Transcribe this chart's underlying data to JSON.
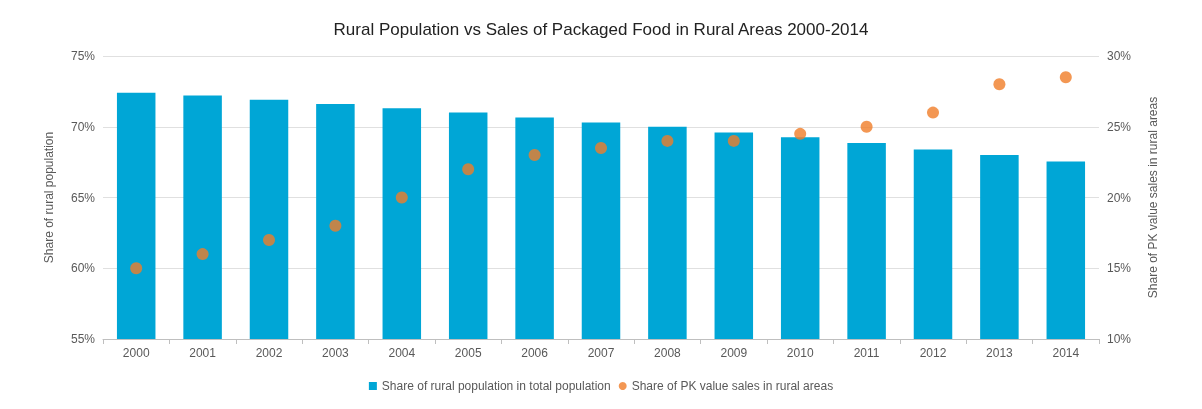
{
  "chart_data": {
    "type": "bar",
    "title": "Rural Population vs Sales of Packaged Food in Rural Areas 2000-2014",
    "ylabel": "Share of rural population",
    "y2label": "Share of PK value sales in rural areas",
    "categories": [
      "2000",
      "2001",
      "2002",
      "2003",
      "2004",
      "2005",
      "2006",
      "2007",
      "2008",
      "2009",
      "2010",
      "2011",
      "2012",
      "2013",
      "2014"
    ],
    "series": [
      {
        "name": "Share of rural population in total population",
        "color": "#00a6d6",
        "values": [
          72.4,
          72.2,
          71.9,
          71.6,
          71.3,
          71.0,
          70.65,
          70.3,
          70.0,
          69.6,
          69.25,
          68.85,
          68.4,
          68.0,
          67.55
        ]
      },
      {
        "name": "Share of PK value sales in rural areas",
        "type": "scatter",
        "axis": "y2",
        "color": "#f07d28",
        "values": [
          15,
          16,
          17,
          18,
          20,
          22,
          23,
          23.5,
          24,
          24,
          24.5,
          25,
          26,
          28,
          28.5
        ]
      }
    ],
    "ylim": [
      55,
      75
    ],
    "yticks": [
      {
        "value": 55,
        "label": "55%"
      },
      {
        "value": 60,
        "label": "60%"
      },
      {
        "value": 65,
        "label": "65%"
      },
      {
        "value": 70,
        "label": "70%"
      },
      {
        "value": 75,
        "label": "75%"
      }
    ],
    "y2lim": [
      10,
      30
    ],
    "y2ticks": [
      {
        "value": 10,
        "label": "10%"
      },
      {
        "value": 15,
        "label": "15%"
      },
      {
        "value": 20,
        "label": "20%"
      },
      {
        "value": 25,
        "label": "25%"
      },
      {
        "value": 30,
        "label": "30%"
      }
    ],
    "grid": "y",
    "legend": "bottom",
    "marker": "circle"
  }
}
